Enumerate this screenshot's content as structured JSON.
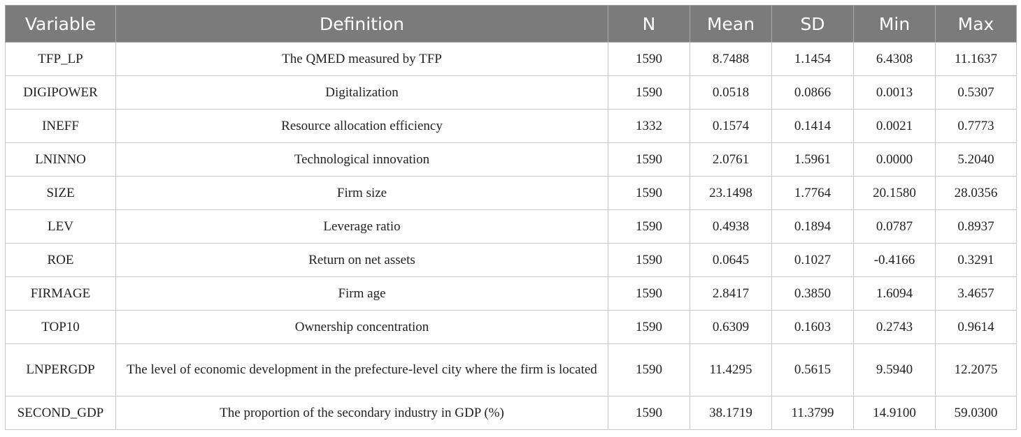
{
  "table": {
    "headers": [
      "Variable",
      "Definition",
      "N",
      "Mean",
      "SD",
      "Min",
      "Max"
    ],
    "rows": [
      [
        "TFP_LP",
        "The QMED measured by TFP",
        "1590",
        "8.7488",
        "1.1454",
        "6.4308",
        "11.1637"
      ],
      [
        "DIGIPOWER",
        "Digitalization",
        "1590",
        "0.0518",
        "0.0866",
        "0.0013",
        "0.5307"
      ],
      [
        "INEFF",
        "Resource allocation efficiency",
        "1332",
        "0.1574",
        "0.1414",
        "0.0021",
        "0.7773"
      ],
      [
        "LNINNO",
        "Technological innovation",
        "1590",
        "2.0761",
        "1.5961",
        "0.0000",
        "5.2040"
      ],
      [
        "SIZE",
        "Firm size",
        "1590",
        "23.1498",
        "1.7764",
        "20.1580",
        "28.0356"
      ],
      [
        "LEV",
        "Leverage ratio",
        "1590",
        "0.4938",
        "0.1894",
        "0.0787",
        "0.8937"
      ],
      [
        "ROE",
        "Return on net assets",
        "1590",
        "0.0645",
        "0.1027",
        "-0.4166",
        "0.3291"
      ],
      [
        "FIRMAGE",
        "Firm age",
        "1590",
        "2.8417",
        "0.3850",
        "1.6094",
        "3.4657"
      ],
      [
        "TOP10",
        "Ownership concentration",
        "1590",
        "0.6309",
        "0.1603",
        "0.2743",
        "0.9614"
      ],
      [
        "LNPERGDP",
        "The level of economic development in the prefecture-level city where the firm is located",
        "1590",
        "11.4295",
        "0.5615",
        "9.5940",
        "12.2075"
      ],
      [
        "SECOND_GDP",
        "The proportion of the secondary industry in GDP (%)",
        "1590",
        "38.1719",
        "11.3799",
        "14.9100",
        "59.0300"
      ]
    ]
  },
  "colors": {
    "header_bg": "#7b7b7b",
    "header_text": "#ffffff",
    "border": "#c8c8c8"
  }
}
